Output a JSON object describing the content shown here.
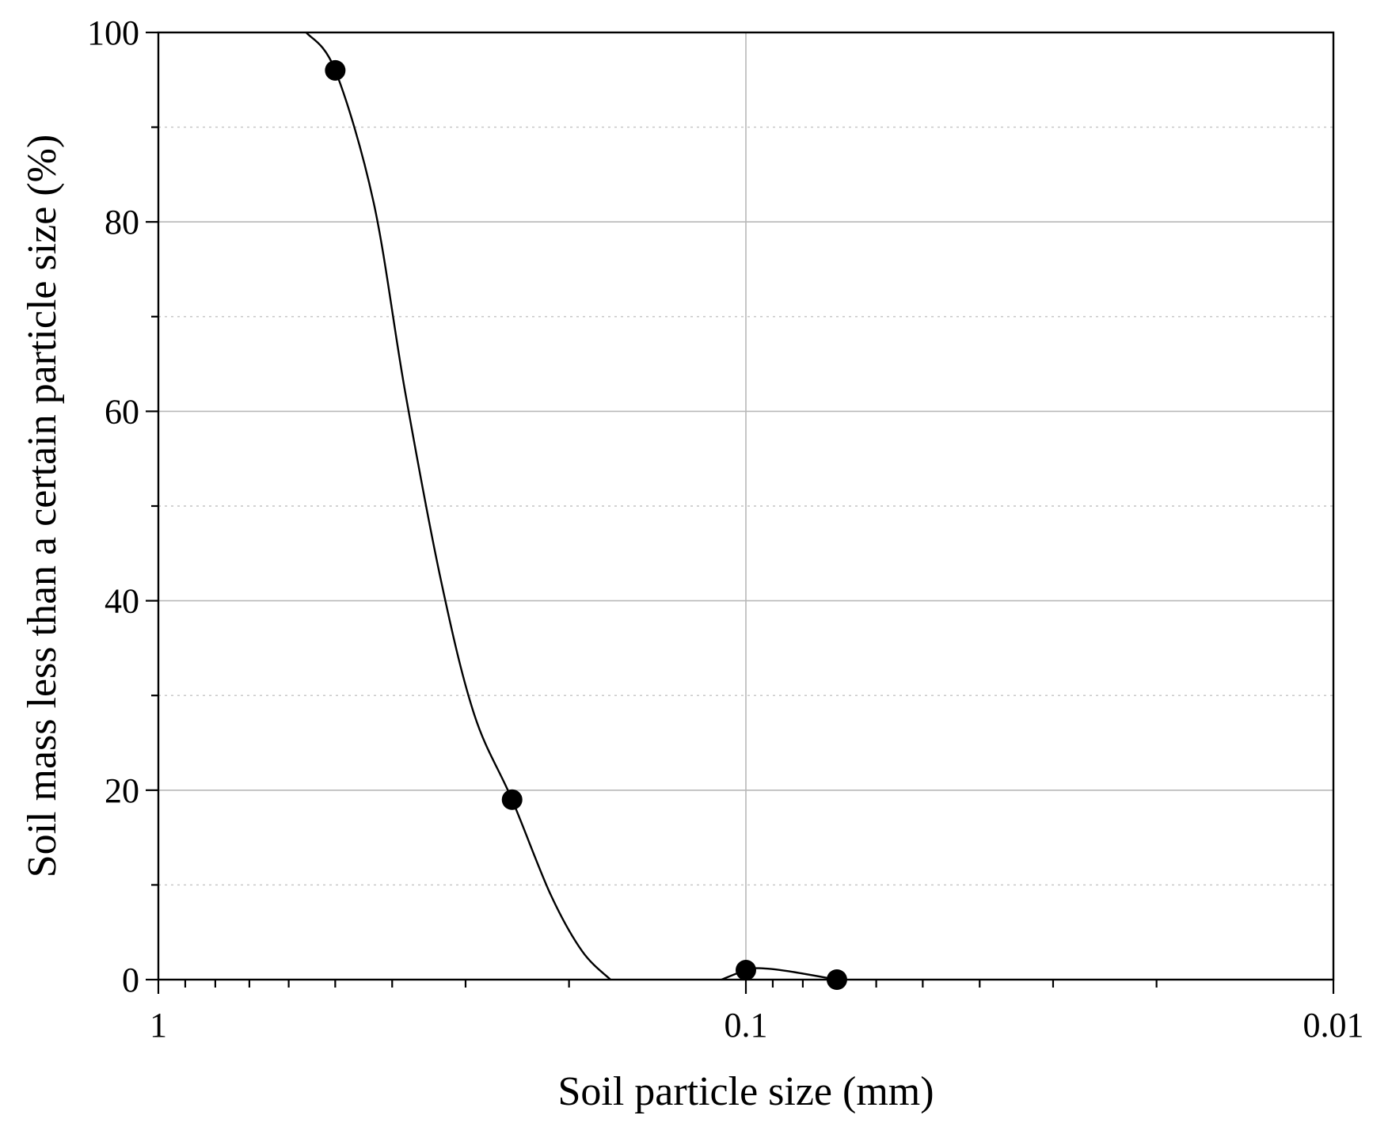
{
  "chart_data": {
    "type": "scatter",
    "xlabel": "Soil particle size (mm)",
    "ylabel": "Soil mass less than a certain particle size (%)",
    "x_scale": "log",
    "x_reversed": true,
    "xlim": [
      1,
      0.01
    ],
    "ylim": [
      0,
      100
    ],
    "x_ticks": [
      "1",
      "0.1",
      "0.01"
    ],
    "y_ticks": [
      "0",
      "20",
      "40",
      "60",
      "80",
      "100"
    ],
    "grid": true,
    "legend": "none",
    "series": [
      {
        "points": [
          {
            "x": 0.5,
            "y": 96
          },
          {
            "x": 0.25,
            "y": 19
          },
          {
            "x": 0.1,
            "y": 1
          },
          {
            "x": 0.07,
            "y": 0
          }
        ],
        "fitted_curve": [
          {
            "x": 0.56,
            "y": 100
          },
          {
            "x": 0.5,
            "y": 96
          },
          {
            "x": 0.43,
            "y": 82
          },
          {
            "x": 0.38,
            "y": 62
          },
          {
            "x": 0.33,
            "y": 42
          },
          {
            "x": 0.29,
            "y": 28
          },
          {
            "x": 0.25,
            "y": 19
          },
          {
            "x": 0.215,
            "y": 9
          },
          {
            "x": 0.19,
            "y": 3
          },
          {
            "x": 0.17,
            "y": 0
          }
        ],
        "fitted_bump": [
          {
            "x": 0.11,
            "y": 0
          },
          {
            "x": 0.1,
            "y": 1
          },
          {
            "x": 0.095,
            "y": 1.2
          },
          {
            "x": 0.085,
            "y": 0.9
          },
          {
            "x": 0.07,
            "y": 0
          }
        ]
      }
    ],
    "colors": {
      "marker": "#000000",
      "line": "#000000",
      "grid": "#b8b8b8"
    }
  }
}
